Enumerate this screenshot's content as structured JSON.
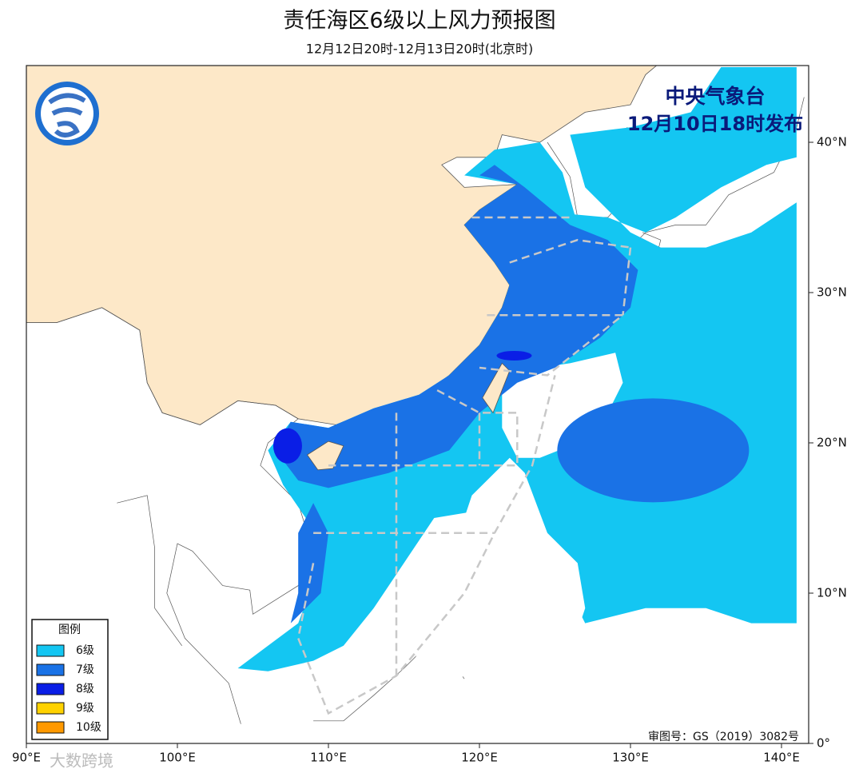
{
  "header": {
    "title": "责任海区6级以上风力预报图",
    "subtitle": "12月12日20时-12月13日20时(北京时)"
  },
  "issuer": {
    "name": "中央气象台",
    "time": "12月10日18时发布"
  },
  "legend": {
    "title": "图例",
    "items": [
      {
        "label": "6级",
        "color": "#14c6f2"
      },
      {
        "label": "7级",
        "color": "#1a72e6"
      },
      {
        "label": "8级",
        "color": "#0a1ee6"
      },
      {
        "label": "9级",
        "color": "#ffd200"
      },
      {
        "label": "10级",
        "color": "#ff9900"
      }
    ]
  },
  "axes": {
    "longitude_labels": [
      "90°E",
      "100°E",
      "110°E",
      "120°E",
      "130°E",
      "140°E"
    ],
    "latitude_labels": [
      "0°",
      "10°N",
      "20°N",
      "30°N",
      "40°N"
    ]
  },
  "approval": "审图号：GS（2019）3082号",
  "watermark": "大数跨境"
}
